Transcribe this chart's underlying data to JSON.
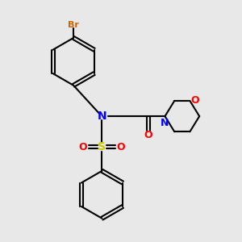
{
  "background_color": "#e8e8e8",
  "bond_color": "#000000",
  "N_color": "#0000ff",
  "O_color": "#ff0000",
  "S_color": "#cccc00",
  "Br_color": "#cc6600",
  "figsize": [
    3.0,
    3.0
  ],
  "dpi": 100,
  "xlim": [
    0,
    10
  ],
  "ylim": [
    0,
    10
  ]
}
